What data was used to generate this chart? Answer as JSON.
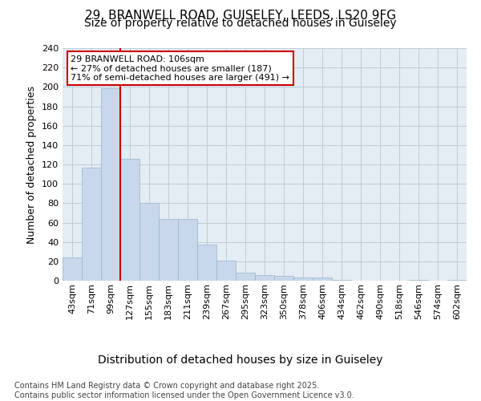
{
  "title_line1": "29, BRANWELL ROAD, GUISELEY, LEEDS, LS20 9FG",
  "title_line2": "Size of property relative to detached houses in Guiseley",
  "xlabel": "Distribution of detached houses by size in Guiseley",
  "ylabel": "Number of detached properties",
  "categories": [
    "43sqm",
    "71sqm",
    "99sqm",
    "127sqm",
    "155sqm",
    "183sqm",
    "211sqm",
    "239sqm",
    "267sqm",
    "295sqm",
    "323sqm",
    "350sqm",
    "378sqm",
    "406sqm",
    "434sqm",
    "462sqm",
    "490sqm",
    "518sqm",
    "546sqm",
    "574sqm",
    "602sqm"
  ],
  "values": [
    24,
    117,
    199,
    126,
    80,
    64,
    64,
    37,
    21,
    8,
    6,
    5,
    3,
    3,
    1,
    0,
    0,
    0,
    1,
    0,
    1
  ],
  "bar_color": "#c8d8ea",
  "bar_edge_color": "#9ab4cc",
  "grid_color": "#c0ccd8",
  "background_color": "#e4ecf4",
  "ylim": [
    0,
    240
  ],
  "yticks": [
    0,
    20,
    40,
    60,
    80,
    100,
    120,
    140,
    160,
    180,
    200,
    220,
    240
  ],
  "red_line_x": 2.5,
  "annotation_line1": "29 BRANWELL ROAD: 106sqm",
  "annotation_line2": "← 27% of detached houses are smaller (187)",
  "annotation_line3": "71% of semi-detached houses are larger (491) →",
  "annotation_box_color": "#ffffff",
  "annotation_box_edge": "#cc0000",
  "red_line_color": "#cc0000",
  "footer_line1": "Contains HM Land Registry data © Crown copyright and database right 2025.",
  "footer_line2": "Contains public sector information licensed under the Open Government Licence v3.0.",
  "title_fontsize": 11,
  "subtitle_fontsize": 10,
  "ylabel_fontsize": 9,
  "xlabel_fontsize": 10,
  "tick_fontsize": 8,
  "annotation_fontsize": 8,
  "footer_fontsize": 7
}
